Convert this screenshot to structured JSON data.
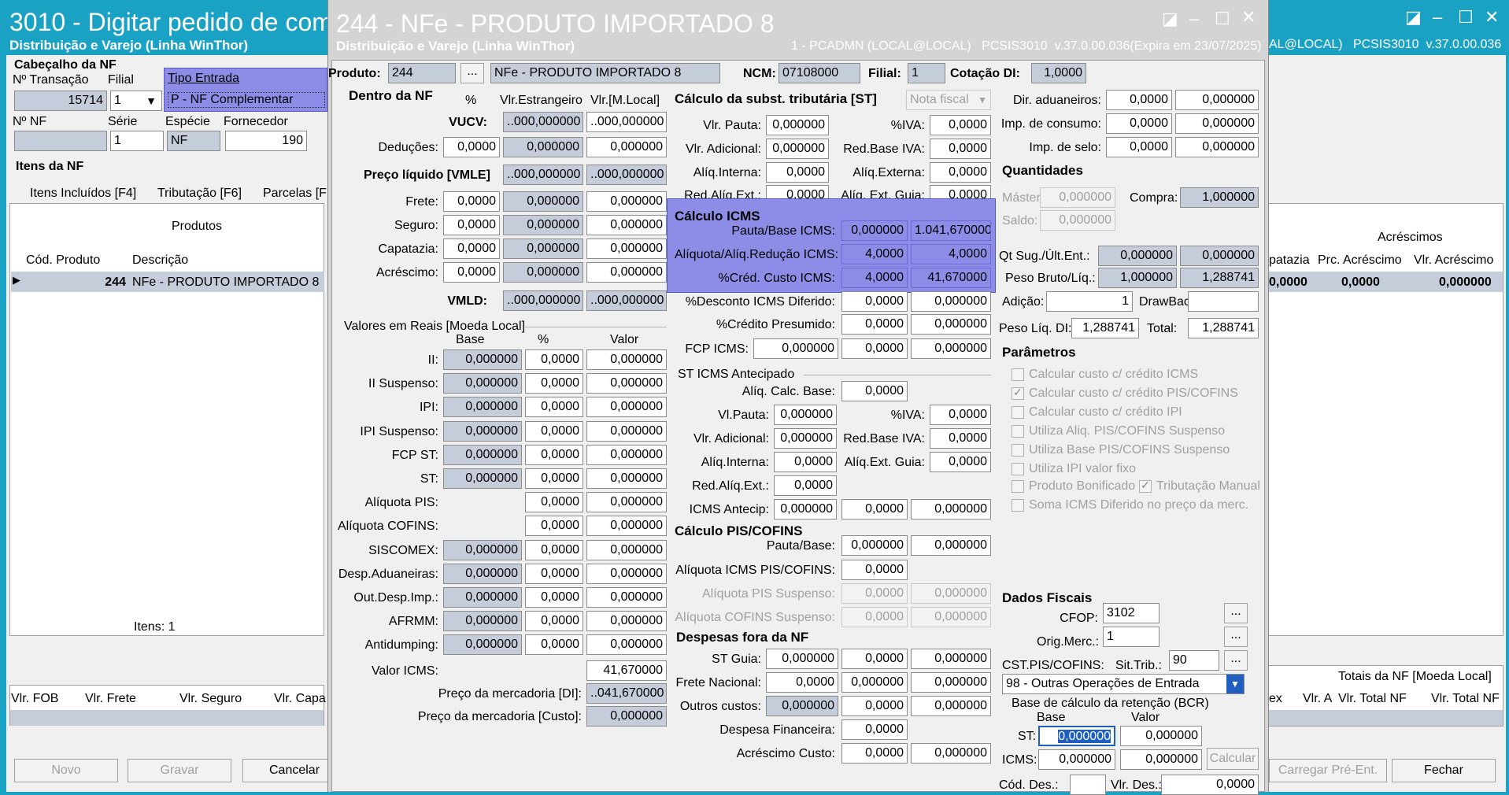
{
  "bg_window": {
    "title": "3010 - Digitar pedido de com",
    "subtitle": "Distribuição e Varejo (Linha WinThor)",
    "right_status": "AL@LOCAL)   PCSIS3010  v.37.0.00.036",
    "cabecalho": "Cabeçalho da NF",
    "n_transacao_label": "Nº Transação",
    "filial_label": "Filial",
    "n_transacao": "15714",
    "filial": "1",
    "nnf_label": "Nº NF",
    "serie_label": "Série",
    "especie_label": "Espécie",
    "fornecedor_label": "Fornecedor",
    "serie": "1",
    "especie": "NF",
    "fornecedor": "190",
    "itens_nf": "Itens da NF",
    "tabs": [
      "Itens Incluídos [F4]",
      "Tributação [F6]",
      "Parcelas [F"
    ],
    "produtos_header": "Produtos",
    "col_cod": "Cód. Produto",
    "col_desc": "Descrição",
    "row_cod": "244",
    "row_desc": "NFe - PRODUTO IMPORTADO 8",
    "itens_count": "Itens: 1",
    "totals_cols": [
      "Vlr. FOB",
      "Vlr. Frete",
      "Vlr. Seguro",
      "Vlr. Capa"
    ],
    "btn_novo": "Novo",
    "btn_gravar": "Gravar",
    "btn_cancelar": "Cancelar",
    "acrescimos": "Acréscimos",
    "right_cols": [
      "patazia",
      "Prc. Acréscimo",
      "Vlr. Acréscimo"
    ],
    "right_vals": [
      "0,0000",
      "0,0000",
      "0,000000"
    ],
    "totais_nf": "Totais da NF [Moeda Local]",
    "right_cols2": [
      "ex",
      "Vlr. A",
      "Vlr. Total NF",
      "Vlr. Total NF"
    ],
    "btn_carregar": "Carregar Pré-Ent.",
    "btn_fechar": "Fechar"
  },
  "popup_menu": {
    "item1": "Tipo Entrada",
    "item2": "P - NF Complementar"
  },
  "dialog": {
    "title": "244 - NFe - PRODUTO IMPORTADO 8",
    "subtitle": "Distribuição e Varejo (Linha WinThor)",
    "status": "1 - PCADMN (LOCAL@LOCAL)   PCSIS3010  v.37.0.00.036(Expira em 23/07/2025)",
    "produto_label": "Produto:",
    "produto": "244",
    "produto_desc": "NFe - PRODUTO IMPORTADO 8",
    "ncm_label": "NCM:",
    "ncm": "07108000",
    "filial_label": "Filial:",
    "filial": "1",
    "cotacao_label": "Cotação DI:",
    "cotacao": "1,0000",
    "dentro_nf": "Dentro da NF",
    "pct": "%",
    "vlr_estr": "Vlr.Estrangeiro",
    "vlr_local": "Vlr.[M.Local]",
    "vucv": "VUCV:",
    "preco_liq": "Preço líquido [VMLE]",
    "vmld": "VMLD:",
    "trunc_val": "..000,000000",
    "dentro_rows": [
      {
        "label": "Deduções:",
        "pct": "0,0000",
        "estr": "0,000000",
        "local": "0,000000"
      },
      {
        "label": "Frete:",
        "pct": "0,0000",
        "estr": "0,000000",
        "local": "0,000000"
      },
      {
        "label": "Seguro:",
        "pct": "0,0000",
        "estr": "0,000000",
        "local": "0,000000"
      },
      {
        "label": "Capatazia:",
        "pct": "0,0000",
        "estr": "0,000000",
        "local": "0,000000"
      },
      {
        "label": "Acréscimo:",
        "pct": "0,0000",
        "estr": "0,000000",
        "local": "0,000000"
      }
    ],
    "valores_reais": "Valores em Reais [Moeda Local]",
    "col_base": "Base",
    "col_pct": "%",
    "col_valor": "Valor",
    "reais_rows": [
      {
        "label": "II:",
        "base": "0,000000",
        "pct": "0,0000",
        "valor": "0,000000"
      },
      {
        "label": "II Suspenso:",
        "base": "0,000000",
        "pct": "0,0000",
        "valor": "0,000000"
      },
      {
        "label": "IPI:",
        "base": "0,000000",
        "pct": "0,0000",
        "valor": "0,000000"
      },
      {
        "label": "IPI Suspenso:",
        "base": "0,000000",
        "pct": "0,0000",
        "valor": "0,000000"
      },
      {
        "label": "FCP ST:",
        "base": "0,000000",
        "pct": "0,0000",
        "valor": "0,000000"
      },
      {
        "label": "ST:",
        "base": "0,000000",
        "pct": "0,0000",
        "valor": "0,000000"
      },
      {
        "label": "Alíquota PIS:",
        "base": "",
        "pct": "0,0000",
        "valor": "0,000000"
      },
      {
        "label": "Alíquota COFINS:",
        "base": "",
        "pct": "0,0000",
        "valor": "0,000000"
      },
      {
        "label": "SISCOMEX:",
        "base": "0,000000",
        "pct": "0,0000",
        "valor": "0,000000"
      },
      {
        "label": "Desp.Aduaneiras:",
        "base": "0,000000",
        "pct": "0,0000",
        "valor": "0,000000"
      },
      {
        "label": "Out.Desp.Imp.:",
        "base": "0,000000",
        "pct": "0,0000",
        "valor": "0,000000"
      },
      {
        "label": "AFRMM:",
        "base": "0,000000",
        "pct": "0,0000",
        "valor": "0,000000"
      },
      {
        "label": "Antidumping:",
        "base": "0,000000",
        "pct": "0,0000",
        "valor": "0,000000"
      }
    ],
    "valor_icms_label": "Valor ICMS:",
    "valor_icms": "41,670000",
    "preco_di_label": "Preço da mercadoria [DI]:",
    "preco_di": "..041,670000",
    "preco_custo_label": "Preço da mercadoria [Custo]:",
    "preco_custo": "0,000000",
    "calc_st": "Cálculo da subst. tributária [ST]",
    "nota_fiscal": "Nota fiscal",
    "vlr_pauta_label": "Vlr. Pauta:",
    "vlr_pauta": "0,000000",
    "iva_label": "%IVA:",
    "iva": "0,0000",
    "vlr_adic_label": "Vlr. Adicional:",
    "vlr_adic": "0,000000",
    "red_base_iva_label": "Red.Base IVA:",
    "red_base_iva": "0,0000",
    "aliq_int_label": "Alíq.Interna:",
    "aliq_int": "0,0000",
    "aliq_ext_label": "Alíq.Externa:",
    "aliq_ext": "0,0000",
    "red_aliq_ext_label": "Red.Alíq.Ext.:",
    "red_aliq_ext": "0,0000",
    "aliq_ext_guia_label": "Alíq. Ext. Guia:",
    "aliq_ext_guia": "0,0000",
    "calc_icms": "Cálculo ICMS",
    "pauta_base_icms_label": "Pauta/Base ICMS:",
    "pauta_base_icms1": "0,000000",
    "pauta_base_icms2": "1.041,670000",
    "aliq_red_label": "Alíquota/Alíq.Redução ICMS:",
    "aliq_red1": "4,0000",
    "aliq_red2": "4,0000",
    "cred_custo_label": "%Créd. Custo ICMS:",
    "cred_custo1": "4,0000",
    "cred_custo2": "41,670000",
    "desc_dif_label": "%Desconto ICMS Diferido:",
    "desc_dif1": "0,0000",
    "desc_dif2": "0,000000",
    "cred_pres_label": "%Crédito Presumido:",
    "cred_pres1": "0,0000",
    "cred_pres2": "0,000000",
    "fcp_icms_label": "FCP ICMS:",
    "fcp_icms1": "0,000000",
    "fcp_icms2": "0,0000",
    "fcp_icms3": "0,000000",
    "st_antecipado": "ST ICMS Antecipado",
    "aliq_calc_base_label": "Alíq. Calc. Base:",
    "aliq_calc_base": "0,0000",
    "vl_pauta_label": "Vl.Pauta:",
    "vl_pauta": "0,000000",
    "iva2_label": "%IVA:",
    "iva2": "0,0000",
    "vlr_adic2_label": "Vlr. Adicional:",
    "vlr_adic2": "0,000000",
    "red_base_iva2_label": "Red.Base IVA:",
    "red_base_iva2": "0,0000",
    "aliq_int2_label": "Alíq.Interna:",
    "aliq_int2": "0,0000",
    "aliq_ext_guia2_label": "Alíq.Ext. Guia:",
    "aliq_ext_guia2": "0,0000",
    "red_aliq_ext2_label": "Red.Alíq.Ext.:",
    "red_aliq_ext2": "0,0000",
    "icms_antecip_label": "ICMS Antecip:",
    "icms_antecip1": "0,000000",
    "icms_antecip2": "0,0000",
    "icms_antecip3": "0,000000",
    "calc_pis": "Cálculo PIS/COFINS",
    "pauta_base_label": "Pauta/Base:",
    "pauta_base1": "0,000000",
    "pauta_base2": "0,000000",
    "aliq_icms_pis_label": "Alíquota ICMS PIS/COFINS:",
    "aliq_icms_pis": "0,0000",
    "aliq_pis_susp_label": "Alíquota PIS Suspenso:",
    "aliq_pis_susp1": "0,0000",
    "aliq_pis_susp2": "0,000000",
    "aliq_cof_susp_label": "Alíquota COFINS Suspenso:",
    "aliq_cof_susp1": "0,0000",
    "aliq_cof_susp2": "0,000000",
    "desp_fora": "Despesas fora da NF",
    "desp_rows": [
      {
        "label": "ST Guia:",
        "a": "0,000000",
        "b": "0,0000",
        "c": "0,000000"
      },
      {
        "label": "Frete Nacional:",
        "a": "0,0000",
        "b": "0,000000",
        "c": "0,000000"
      },
      {
        "label": "Outros custos:",
        "a": "0,000000",
        "b": "0,0000",
        "c": "0,000000"
      }
    ],
    "desp_fin_label": "Despesa Financeira:",
    "desp_fin": "0,0000",
    "acresc_custo_label": "Acréscimo Custo:",
    "acresc_custo1": "0,0000",
    "acresc_custo2": "0,000000",
    "dir_adu_label": "Dir. aduaneiros:",
    "dir_adu1": "0,0000",
    "dir_adu2": "0,000000",
    "imp_cons_label": "Imp. de consumo:",
    "imp_cons1": "0,0000",
    "imp_cons2": "0,000000",
    "imp_selo_label": "Imp. de selo:",
    "imp_selo1": "0,0000",
    "imp_selo2": "0,000000",
    "quantidades": "Quantidades",
    "master_label": "Máster:",
    "master": "0,000000",
    "compra_label": "Compra:",
    "compra": "1,000000",
    "saldo_label": "Saldo:",
    "saldo": "0,000000",
    "qt_sug_label": "Qt Sug./Últ.Ent.:",
    "qt_sug1": "0,000000",
    "qt_sug2": "0,000000",
    "peso_label": "Peso Bruto/Líq.:",
    "peso1": "1,000000",
    "peso2": "1,288741",
    "adicao_label": "Adição:",
    "adicao": "1",
    "drawback_label": "DrawBack:",
    "drawback": "",
    "peso_liq_di_label": "Peso Líq. DI:",
    "peso_liq_di": "1,288741",
    "total_label": "Total:",
    "total": "1,288741",
    "parametros": "Parâmetros",
    "params": [
      {
        "label": "Calcular custo c/ crédito ICMS",
        "checked": false
      },
      {
        "label": "Calcular custo c/ crédito PIS/COFINS",
        "checked": true
      },
      {
        "label": "Calcular custo c/ crédito IPI",
        "checked": false
      },
      {
        "label": "Utiliza Aliq. PIS/COFINS Suspenso",
        "checked": false
      },
      {
        "label": "Utiliza Base PIS/COFINS Suspenso",
        "checked": false
      },
      {
        "label": "Utiliza IPI valor fixo",
        "checked": false
      }
    ],
    "prod_bonif": "Produto Bonificado",
    "trib_manual": "Tributação Manual",
    "soma_icms": "Soma ICMS Diferido no preço da merc.",
    "dados_fiscais": "Dados Fiscais",
    "cfop_label": "CFOP:",
    "cfop": "3102",
    "orig_merc_label": "Orig.Merc.:",
    "orig_merc": "1",
    "cst_label": "CST.PIS/COFINS:",
    "sit_trib_label": "Sit.Trib.:",
    "sit_trib": "90",
    "ellipsis": "...",
    "cst_select": "98 - Outras Operações de Entrada",
    "bcr_label": "Base de cálculo da retenção (BCR)",
    "bcr_base": "Base",
    "bcr_valor": "Valor",
    "bcr_st_label": "ST:",
    "bcr_st1": "0,000000",
    "bcr_st2": "0,000000",
    "bcr_icms_label": "ICMS:",
    "bcr_icms1": "0,000000",
    "bcr_icms2": "0,000000",
    "calcular": "Calcular",
    "cod_des_label": "Cód. Des.:",
    "vlr_des_label": "Vlr. Des.:",
    "vlr_des": "0,0000"
  },
  "colors": {
    "titlebar": "#1aa2c4",
    "dialog_titlebar": "#d4d4d4",
    "highlight": "#8d8de8",
    "gray_field": "#c4cdd9"
  }
}
